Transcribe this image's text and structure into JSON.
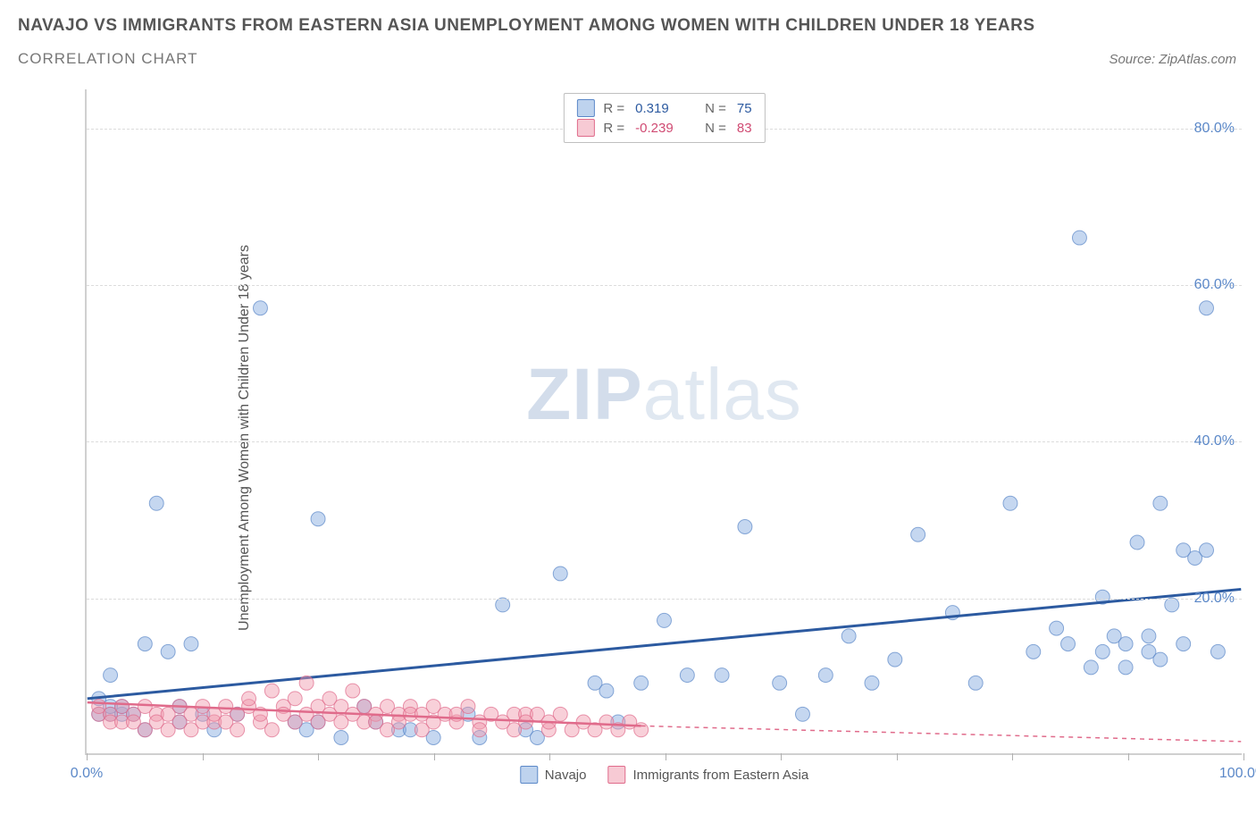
{
  "title": "NAVAJO VS IMMIGRANTS FROM EASTERN ASIA UNEMPLOYMENT AMONG WOMEN WITH CHILDREN UNDER 18 YEARS",
  "subtitle": "CORRELATION CHART",
  "source": "Source: ZipAtlas.com",
  "watermark": {
    "prefix": "ZIP",
    "suffix": "atlas"
  },
  "chart": {
    "type": "scatter",
    "background_color": "#ffffff",
    "grid_color": "#dcdcdc",
    "axis_color": "#d0d0d0",
    "ylabel": "Unemployment Among Women with Children Under 18 years",
    "ylabel_fontsize": 16,
    "xlim": [
      0,
      100
    ],
    "ylim": [
      0,
      85
    ],
    "yticks": [
      20,
      40,
      60,
      80
    ],
    "ytick_labels": [
      "20.0%",
      "40.0%",
      "60.0%",
      "80.0%"
    ],
    "xtick_label_left": "0.0%",
    "xtick_label_right": "100.0%",
    "xtick_marks": [
      0,
      10,
      20,
      30,
      40,
      50,
      60,
      70,
      80,
      90,
      100
    ],
    "tick_label_color": "#5b88c8",
    "marker_radius": 8,
    "marker_opacity": 0.45,
    "series": [
      {
        "name": "Navajo",
        "color": "#7ea7de",
        "stroke_color": "#5b88c8",
        "points": [
          [
            1,
            7
          ],
          [
            1,
            5
          ],
          [
            2,
            5
          ],
          [
            2,
            6
          ],
          [
            2,
            10
          ],
          [
            3,
            5
          ],
          [
            3,
            6
          ],
          [
            4,
            5
          ],
          [
            5,
            3
          ],
          [
            5,
            14
          ],
          [
            6,
            32
          ],
          [
            7,
            13
          ],
          [
            8,
            6
          ],
          [
            8,
            4
          ],
          [
            9,
            14
          ],
          [
            10,
            5
          ],
          [
            11,
            3
          ],
          [
            13,
            5
          ],
          [
            15,
            57
          ],
          [
            18,
            4
          ],
          [
            19,
            3
          ],
          [
            20,
            30
          ],
          [
            20,
            4
          ],
          [
            22,
            2
          ],
          [
            24,
            6
          ],
          [
            25,
            4
          ],
          [
            27,
            3
          ],
          [
            28,
            3
          ],
          [
            30,
            2
          ],
          [
            33,
            5
          ],
          [
            34,
            2
          ],
          [
            36,
            19
          ],
          [
            38,
            3
          ],
          [
            39,
            2
          ],
          [
            41,
            23
          ],
          [
            44,
            9
          ],
          [
            45,
            8
          ],
          [
            46,
            4
          ],
          [
            48,
            9
          ],
          [
            50,
            17
          ],
          [
            52,
            10
          ],
          [
            55,
            10
          ],
          [
            57,
            29
          ],
          [
            60,
            9
          ],
          [
            62,
            5
          ],
          [
            64,
            10
          ],
          [
            66,
            15
          ],
          [
            68,
            9
          ],
          [
            70,
            12
          ],
          [
            72,
            28
          ],
          [
            75,
            18
          ],
          [
            77,
            9
          ],
          [
            80,
            32
          ],
          [
            82,
            13
          ],
          [
            84,
            16
          ],
          [
            85,
            14
          ],
          [
            86,
            66
          ],
          [
            87,
            11
          ],
          [
            88,
            20
          ],
          [
            88,
            13
          ],
          [
            89,
            15
          ],
          [
            90,
            14
          ],
          [
            90,
            11
          ],
          [
            91,
            27
          ],
          [
            92,
            13
          ],
          [
            92,
            15
          ],
          [
            93,
            12
          ],
          [
            93,
            32
          ],
          [
            94,
            19
          ],
          [
            95,
            26
          ],
          [
            95,
            14
          ],
          [
            96,
            25
          ],
          [
            97,
            57
          ],
          [
            97,
            26
          ],
          [
            98,
            13
          ]
        ],
        "trend": {
          "x1": 0,
          "y1": 7,
          "x2": 100,
          "y2": 21,
          "color": "#2c5aa0",
          "width": 3
        },
        "stats": {
          "R": "0.319",
          "N": "75"
        }
      },
      {
        "name": "Immigrants from Eastern Asia",
        "color": "#f096aa",
        "stroke_color": "#e06b8b",
        "points": [
          [
            1,
            5
          ],
          [
            1,
            6
          ],
          [
            2,
            5
          ],
          [
            2,
            4
          ],
          [
            3,
            4
          ],
          [
            3,
            6
          ],
          [
            4,
            5
          ],
          [
            4,
            4
          ],
          [
            5,
            6
          ],
          [
            5,
            3
          ],
          [
            6,
            5
          ],
          [
            6,
            4
          ],
          [
            7,
            3
          ],
          [
            7,
            5
          ],
          [
            8,
            4
          ],
          [
            8,
            6
          ],
          [
            9,
            3
          ],
          [
            9,
            5
          ],
          [
            10,
            4
          ],
          [
            10,
            6
          ],
          [
            11,
            4
          ],
          [
            11,
            5
          ],
          [
            12,
            4
          ],
          [
            12,
            6
          ],
          [
            13,
            5
          ],
          [
            13,
            3
          ],
          [
            14,
            6
          ],
          [
            14,
            7
          ],
          [
            15,
            4
          ],
          [
            15,
            5
          ],
          [
            16,
            3
          ],
          [
            16,
            8
          ],
          [
            17,
            6
          ],
          [
            17,
            5
          ],
          [
            18,
            4
          ],
          [
            18,
            7
          ],
          [
            19,
            9
          ],
          [
            19,
            5
          ],
          [
            20,
            4
          ],
          [
            20,
            6
          ],
          [
            21,
            5
          ],
          [
            21,
            7
          ],
          [
            22,
            4
          ],
          [
            22,
            6
          ],
          [
            23,
            5
          ],
          [
            23,
            8
          ],
          [
            24,
            4
          ],
          [
            24,
            6
          ],
          [
            25,
            5
          ],
          [
            25,
            4
          ],
          [
            26,
            6
          ],
          [
            26,
            3
          ],
          [
            27,
            5
          ],
          [
            27,
            4
          ],
          [
            28,
            6
          ],
          [
            28,
            5
          ],
          [
            29,
            3
          ],
          [
            29,
            5
          ],
          [
            30,
            4
          ],
          [
            30,
            6
          ],
          [
            31,
            5
          ],
          [
            32,
            4
          ],
          [
            32,
            5
          ],
          [
            33,
            6
          ],
          [
            34,
            4
          ],
          [
            34,
            3
          ],
          [
            35,
            5
          ],
          [
            36,
            4
          ],
          [
            37,
            5
          ],
          [
            37,
            3
          ],
          [
            38,
            5
          ],
          [
            38,
            4
          ],
          [
            39,
            5
          ],
          [
            40,
            3
          ],
          [
            40,
            4
          ],
          [
            41,
            5
          ],
          [
            42,
            3
          ],
          [
            43,
            4
          ],
          [
            44,
            3
          ],
          [
            45,
            4
          ],
          [
            46,
            3
          ],
          [
            47,
            4
          ],
          [
            48,
            3
          ]
        ],
        "trend_solid": {
          "x1": 0,
          "y1": 6.5,
          "x2": 48,
          "y2": 3.5,
          "color": "#e06b8b",
          "width": 2.5
        },
        "trend_dashed": {
          "x1": 48,
          "y1": 3.5,
          "x2": 100,
          "y2": 1.5,
          "color": "#e06b8b",
          "width": 1.5,
          "dash": "5,5"
        },
        "stats": {
          "R": "-0.239",
          "N": "83"
        }
      }
    ],
    "legend_bottom": [
      "Navajo",
      "Immigrants from Eastern Asia"
    ]
  }
}
